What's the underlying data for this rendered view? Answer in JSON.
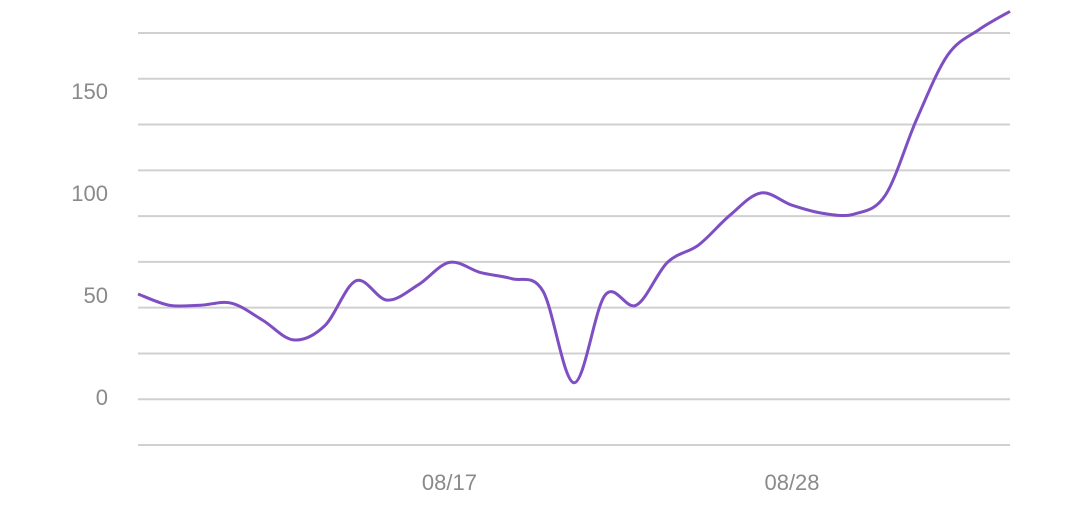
{
  "chart_data": {
    "type": "line",
    "categories": [
      null,
      null,
      null,
      null,
      null,
      null,
      null,
      null,
      null,
      null,
      "08/17",
      null,
      null,
      null,
      null,
      null,
      null,
      null,
      null,
      null,
      null,
      "08/28",
      null,
      null,
      null,
      null,
      null,
      null,
      null
    ],
    "series": [
      {
        "color": "#7e4fc2",
        "values": [
          51.5,
          46,
          46,
          47,
          38.7,
          29,
          36,
          58,
          48.5,
          56,
          67,
          62,
          59,
          53,
          8,
          51,
          46,
          67,
          75.5,
          90,
          101,
          95,
          91,
          90.7,
          100,
          137,
          168.6,
          181,
          190
        ]
      }
    ],
    "ylim": [
      -22.5,
      179.4
    ],
    "yticks": [
      0,
      50,
      100,
      150
    ],
    "grid": true
  }
}
